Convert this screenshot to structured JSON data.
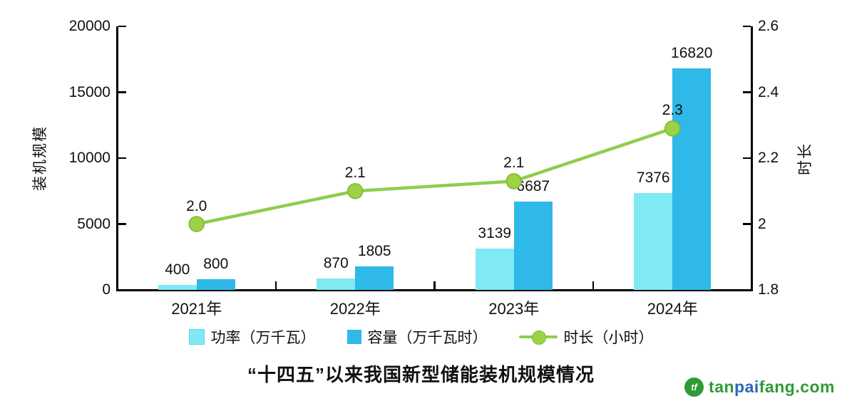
{
  "title": "“十四五”以来我国新型储能装机规模情况",
  "chart_data": {
    "type": "combo_bar_line",
    "categories": [
      "2021年",
      "2022年",
      "2023年",
      "2024年"
    ],
    "series": [
      {
        "name": "功率（万千瓦）",
        "type": "bar",
        "axis": "left",
        "color": "#7FE9F4",
        "border": "#5FD8E9",
        "values": [
          400,
          870,
          3139,
          7376
        ],
        "labels": [
          "400",
          "870",
          "3139",
          "7376"
        ]
      },
      {
        "name": "容量（万千瓦时）",
        "type": "bar",
        "axis": "left",
        "color": "#2EB9E8",
        "border": "#2EB9E8",
        "values": [
          800,
          1805,
          6687,
          16820
        ],
        "labels": [
          "800",
          "1805",
          "6687",
          "16820"
        ]
      },
      {
        "name": "时长（小时）",
        "type": "line",
        "axis": "right",
        "color": "#8CCE4D",
        "marker_color": "#9CD243",
        "marker_edge": "#7EB73B",
        "values": [
          2.0,
          2.1,
          2.1,
          2.3
        ],
        "labels": [
          "2.0",
          "2.1",
          "2.1",
          "2.3"
        ],
        "plot_values": [
          2.0,
          2.1,
          2.13,
          2.29
        ]
      }
    ],
    "left_axis": {
      "label": "装机规模",
      "tick_labels": [
        "20000",
        "15000",
        "10000",
        "5000",
        "0"
      ],
      "tick_values": [
        20000,
        15000,
        10000,
        5000,
        0
      ],
      "range": [
        0,
        20000
      ]
    },
    "right_axis": {
      "label": "时长",
      "tick_labels": [
        "2.6",
        "2.4",
        "2.2",
        "2",
        "1.8"
      ],
      "tick_values": [
        2.6,
        2.4,
        2.2,
        2.0,
        1.8
      ],
      "range": [
        1.8,
        2.6
      ]
    },
    "legend": [
      {
        "label": "功率（万千瓦）",
        "swatch": "square",
        "color": "#7FE9F4"
      },
      {
        "label": "容量（万千瓦时）",
        "swatch": "square",
        "color": "#2EB9E8"
      },
      {
        "label": "时长（小时）",
        "swatch": "line-marker",
        "color": "#8CCE4D",
        "marker_color": "#9CD243"
      }
    ],
    "legend_position": "bottom",
    "grid": false,
    "axis_color": "#000000"
  },
  "watermark": {
    "icon_text": "tf",
    "icon_color": "#2E9B34",
    "parts": [
      {
        "text": "tan",
        "color": "#2E9C35"
      },
      {
        "text": "pai",
        "color": "#2C67B8"
      },
      {
        "text": "fang.com",
        "color": "#2E9C35"
      }
    ]
  }
}
